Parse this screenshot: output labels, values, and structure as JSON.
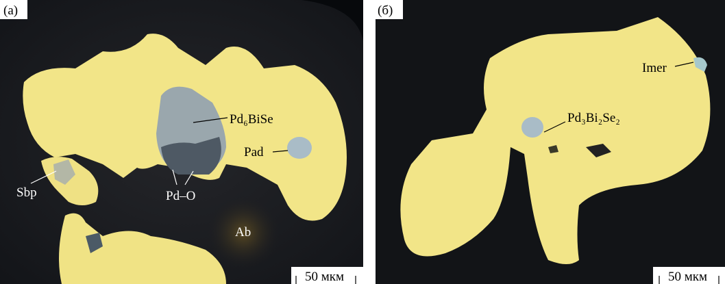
{
  "panels": [
    {
      "label": "(а)",
      "annotations": [
        "Pd₆BiSe",
        "Pad",
        "Sbp",
        "Pd–O",
        "Ab"
      ],
      "scale_bar": "50 мкм"
    },
    {
      "label": "(б)",
      "annotations": [
        "Imer",
        "Pd₃Bi₂Se₂"
      ],
      "scale_bar": "50 мкм"
    }
  ]
}
